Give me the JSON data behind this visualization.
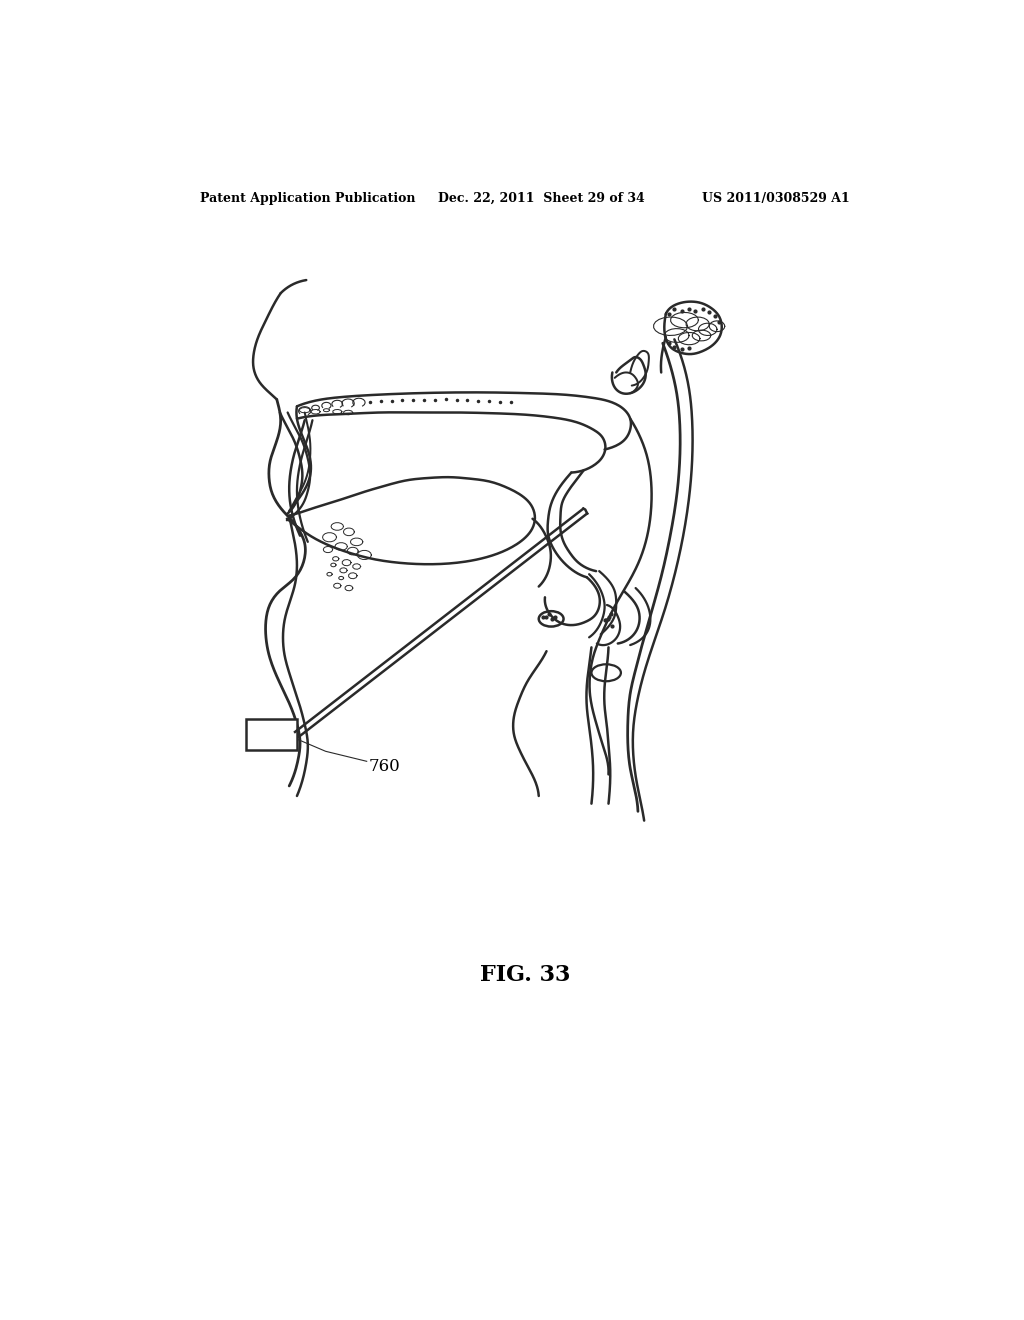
{
  "background_color": "#ffffff",
  "header_left": "Patent Application Publication",
  "header_center": "Dec. 22, 2011  Sheet 29 of 34",
  "header_right": "US 2011/0308529 A1",
  "figure_label": "FIG. 33",
  "label_760": "760",
  "line_color": "#2a2a2a",
  "line_width": 1.8,
  "figsize": [
    10.24,
    13.2
  ],
  "dpi": 100
}
